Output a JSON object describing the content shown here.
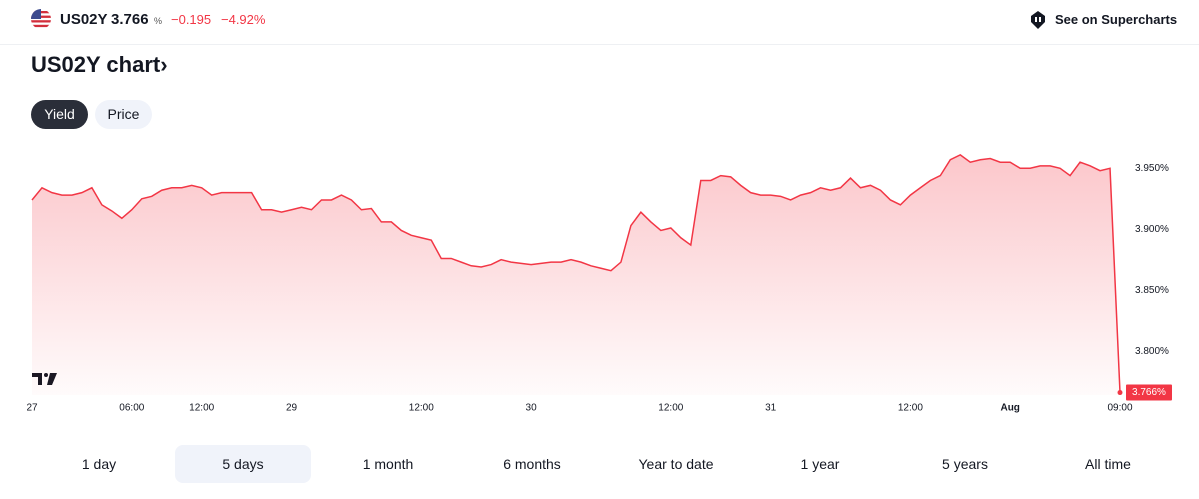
{
  "header": {
    "symbol": "US02Y",
    "price": "3.766",
    "price_unit": "%",
    "change": "−0.195",
    "change_percent": "−4.92%",
    "link": "See on Supercharts"
  },
  "title_arrow": "›",
  "tabs": [
    "Yield",
    "Price"
  ],
  "ranges": [
    "1 day",
    "5 days",
    "1 month",
    "6 months",
    "Year to date",
    "1 year",
    "5 years",
    "All time"
  ],
  "chart_data": {
    "type": "area",
    "title": "US02Y chart",
    "color": "#f23645",
    "ylim": [
      3.764,
      3.965
    ],
    "yticks": [
      {
        "value": 3.95,
        "label": "3.950%"
      },
      {
        "value": 3.9,
        "label": "3.900%"
      },
      {
        "value": 3.85,
        "label": "3.850%"
      },
      {
        "value": 3.8,
        "label": "3.800%"
      }
    ],
    "grid": false,
    "categories": [
      "27",
      null,
      null,
      null,
      null,
      null,
      null,
      null,
      null,
      null,
      "06:00",
      null,
      null,
      null,
      null,
      null,
      null,
      "12:00",
      null,
      null,
      null,
      null,
      null,
      null,
      null,
      null,
      "29",
      null,
      null,
      null,
      null,
      null,
      null,
      null,
      null,
      null,
      null,
      null,
      null,
      "12:00",
      null,
      null,
      null,
      null,
      null,
      null,
      null,
      null,
      null,
      null,
      "30",
      null,
      null,
      null,
      null,
      null,
      null,
      null,
      null,
      null,
      null,
      null,
      null,
      null,
      "12:00",
      null,
      null,
      null,
      null,
      null,
      null,
      null,
      null,
      null,
      "31",
      null,
      null,
      null,
      null,
      null,
      null,
      null,
      null,
      null,
      null,
      null,
      null,
      null,
      "12:00",
      null,
      null,
      null,
      null,
      null,
      null,
      null,
      null,
      null,
      "Aug",
      null,
      null,
      null,
      null,
      null,
      null,
      null,
      null,
      null,
      null,
      "09:00"
    ],
    "values": [
      3.924,
      3.934,
      3.93,
      3.928,
      3.928,
      3.93,
      3.934,
      3.92,
      3.915,
      3.909,
      3.916,
      3.925,
      3.927,
      3.932,
      3.934,
      3.934,
      3.936,
      3.934,
      3.928,
      3.93,
      3.93,
      3.93,
      3.93,
      3.916,
      3.916,
      3.914,
      3.916,
      3.918,
      3.916,
      3.924,
      3.924,
      3.928,
      3.924,
      3.916,
      3.917,
      3.906,
      3.906,
      3.899,
      3.895,
      3.893,
      3.891,
      3.876,
      3.876,
      3.873,
      3.87,
      3.869,
      3.871,
      3.875,
      3.873,
      3.872,
      3.871,
      3.872,
      3.873,
      3.873,
      3.875,
      3.873,
      3.87,
      3.868,
      3.866,
      3.873,
      3.903,
      3.914,
      3.906,
      3.899,
      3.901,
      3.893,
      3.887,
      3.94,
      3.94,
      3.944,
      3.943,
      3.936,
      3.93,
      3.928,
      3.928,
      3.927,
      3.924,
      3.928,
      3.93,
      3.934,
      3.932,
      3.934,
      3.942,
      3.934,
      3.936,
      3.932,
      3.924,
      3.92,
      3.928,
      3.934,
      3.94,
      3.944,
      3.957,
      3.961,
      3.955,
      3.957,
      3.958,
      3.955,
      3.955,
      3.95,
      3.95,
      3.952,
      3.952,
      3.95,
      3.944,
      3.955,
      3.952,
      3.948,
      3.95,
      3.766
    ],
    "value_labels": [
      null,
      null,
      null,
      null,
      null,
      null,
      null,
      null,
      null,
      null,
      null,
      null,
      null,
      null,
      null,
      null,
      null,
      null,
      null,
      null,
      null,
      null,
      null,
      null,
      null,
      null,
      null,
      null,
      null,
      null,
      null,
      null,
      null,
      null,
      null,
      null,
      null,
      null,
      null,
      null,
      null,
      null,
      null,
      null,
      null,
      null,
      null,
      null,
      null,
      null,
      null,
      null,
      null,
      null,
      null,
      null,
      null,
      null,
      null,
      null,
      null,
      null,
      null,
      null,
      null,
      null,
      null,
      null,
      null,
      null,
      null,
      null,
      null,
      null,
      null,
      null,
      null,
      null,
      null,
      null,
      null,
      null,
      null,
      null,
      null,
      null,
      null,
      null,
      null,
      null,
      null,
      null,
      null,
      null,
      null,
      null,
      null,
      null,
      null,
      null,
      null,
      null,
      null,
      null,
      null,
      null,
      null,
      null,
      null,
      "3.766%"
    ]
  }
}
